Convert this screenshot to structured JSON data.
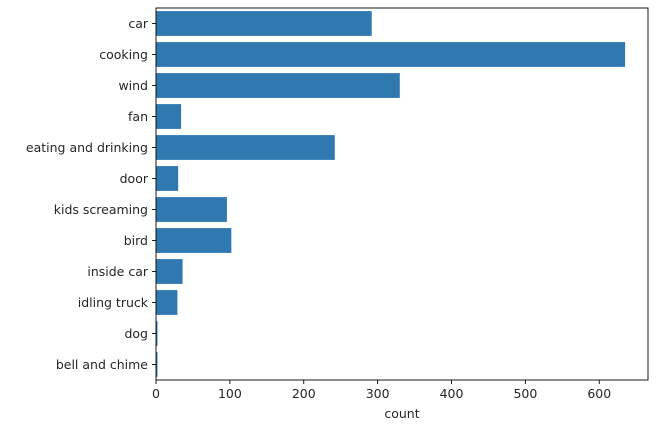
{
  "chart_data": {
    "type": "bar",
    "orientation": "horizontal",
    "categories": [
      "car",
      "cooking",
      "wind",
      "fan",
      "eating and drinking",
      "door",
      "kids screaming",
      "bird",
      "inside car",
      "idling truck",
      "dog",
      "bell and chime"
    ],
    "values": [
      292,
      635,
      330,
      34,
      242,
      30,
      96,
      102,
      36,
      29,
      2,
      2
    ],
    "xlabel": "count",
    "ylabel": "",
    "xlim": [
      0,
      666
    ],
    "xticks": [
      0,
      100,
      200,
      300,
      400,
      500,
      600
    ],
    "bar_color": "#2f78b0",
    "grid": false,
    "legend": "none"
  }
}
